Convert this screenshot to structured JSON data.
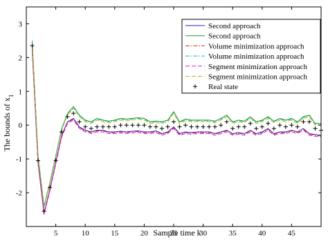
{
  "chart_data": {
    "type": "line",
    "title": "",
    "xlabel": "Sample time k",
    "ylabel": "The bounds of x",
    "ylabel_subscript": "1",
    "xlim": [
      0,
      50
    ],
    "ylim": [
      -3,
      3.5
    ],
    "xticks": [
      5,
      10,
      15,
      20,
      25,
      30,
      35,
      40,
      45
    ],
    "yticks": [
      -2,
      -1,
      0,
      1,
      2,
      3
    ],
    "grid": false,
    "legend_position": "top-right",
    "x": [
      1,
      2,
      3,
      4,
      5,
      6,
      7,
      8,
      9,
      10,
      11,
      12,
      13,
      14,
      15,
      16,
      17,
      18,
      19,
      20,
      21,
      22,
      23,
      24,
      25,
      26,
      27,
      28,
      29,
      30,
      31,
      32,
      33,
      34,
      35,
      36,
      37,
      38,
      39,
      40,
      41,
      42,
      43,
      44,
      45,
      46,
      47,
      48,
      49,
      50
    ],
    "series": [
      {
        "name": "Second approach",
        "color": "#2323d8",
        "dash": "solid",
        "values": [
          2.3,
          -1.1,
          -2.6,
          -1.9,
          -1.1,
          -0.3,
          0.1,
          0.2,
          -0.05,
          -0.15,
          -0.2,
          -0.15,
          -0.15,
          -0.2,
          -0.2,
          -0.18,
          -0.2,
          -0.18,
          -0.17,
          -0.2,
          -0.2,
          -0.17,
          -0.25,
          -0.2,
          -0.05,
          -0.25,
          -0.2,
          -0.22,
          -0.2,
          -0.2,
          -0.2,
          -0.25,
          -0.2,
          -0.15,
          -0.25,
          -0.22,
          -0.25,
          -0.15,
          -0.25,
          -0.2,
          -0.1,
          -0.25,
          -0.2,
          -0.2,
          -0.15,
          -0.2,
          -0.1,
          -0.25,
          -0.28,
          -0.3
        ]
      },
      {
        "name": "Second approach",
        "color": "#1f9e1f",
        "dash": "solid",
        "values": [
          2.5,
          -0.9,
          -2.4,
          -1.7,
          -0.9,
          -0.1,
          0.35,
          0.55,
          0.3,
          0.15,
          0.1,
          0.2,
          0.15,
          0.12,
          0.15,
          0.2,
          0.18,
          0.2,
          0.22,
          0.2,
          0.1,
          0.12,
          0.1,
          0.15,
          0.4,
          0.1,
          0.18,
          0.15,
          0.15,
          0.15,
          0.15,
          0.12,
          0.2,
          0.3,
          0.1,
          0.15,
          0.12,
          0.25,
          0.1,
          0.15,
          0.25,
          0.12,
          0.2,
          0.15,
          0.2,
          0.1,
          0.25,
          0.3,
          0.05,
          0.05
        ]
      },
      {
        "name": "Volume minimization approach",
        "color": "#e02020",
        "dash": "dashdot",
        "values": [
          2.25,
          -1.12,
          -2.62,
          -1.92,
          -1.12,
          -0.32,
          0.08,
          0.18,
          -0.07,
          -0.17,
          -0.22,
          -0.17,
          -0.17,
          -0.22,
          -0.22,
          -0.2,
          -0.22,
          -0.2,
          -0.19,
          -0.22,
          -0.22,
          -0.19,
          -0.27,
          -0.22,
          -0.07,
          -0.27,
          -0.22,
          -0.24,
          -0.22,
          -0.22,
          -0.22,
          -0.27,
          -0.22,
          -0.17,
          -0.27,
          -0.24,
          -0.27,
          -0.17,
          -0.27,
          -0.22,
          -0.12,
          -0.27,
          -0.22,
          -0.22,
          -0.17,
          -0.22,
          -0.12,
          -0.27,
          -0.3,
          -0.32
        ]
      },
      {
        "name": "Volume minimization approach",
        "color": "#1fb8c8",
        "dash": "dashdot",
        "values": [
          2.45,
          -0.92,
          -2.42,
          -1.72,
          -0.92,
          -0.12,
          0.33,
          0.53,
          0.28,
          0.13,
          0.08,
          0.18,
          0.13,
          0.1,
          0.13,
          0.18,
          0.16,
          0.18,
          0.2,
          0.18,
          0.08,
          0.1,
          0.08,
          0.13,
          0.38,
          0.08,
          0.16,
          0.13,
          0.13,
          0.13,
          0.13,
          0.1,
          0.18,
          0.28,
          0.08,
          0.13,
          0.1,
          0.23,
          0.08,
          0.13,
          0.23,
          0.1,
          0.18,
          0.13,
          0.18,
          0.08,
          0.23,
          0.28,
          0.03,
          0.03
        ]
      },
      {
        "name": "Segment minimization approach",
        "color": "#d020d0",
        "dash": "dashed",
        "values": [
          2.2,
          -1.15,
          -2.65,
          -1.95,
          -1.15,
          -0.35,
          0.05,
          0.15,
          -0.1,
          -0.2,
          -0.25,
          -0.2,
          -0.2,
          -0.25,
          -0.25,
          -0.23,
          -0.25,
          -0.23,
          -0.22,
          -0.25,
          -0.25,
          -0.22,
          -0.3,
          -0.25,
          -0.1,
          -0.3,
          -0.25,
          -0.27,
          -0.25,
          -0.25,
          -0.25,
          -0.3,
          -0.25,
          -0.2,
          -0.3,
          -0.27,
          -0.3,
          -0.2,
          -0.3,
          -0.25,
          -0.15,
          -0.3,
          -0.25,
          -0.25,
          -0.2,
          -0.25,
          -0.15,
          -0.3,
          -0.33,
          -0.35
        ]
      },
      {
        "name": "Segment minimization approach",
        "color": "#c8b400",
        "dash": "dashed",
        "values": [
          2.4,
          -0.95,
          -2.45,
          -1.75,
          -0.95,
          -0.15,
          0.3,
          0.5,
          0.25,
          0.1,
          0.05,
          0.15,
          0.1,
          0.07,
          0.1,
          0.15,
          0.13,
          0.15,
          0.17,
          0.15,
          0.05,
          0.07,
          0.05,
          0.1,
          0.35,
          0.05,
          0.13,
          0.1,
          0.1,
          0.1,
          0.1,
          0.07,
          0.15,
          0.25,
          0.05,
          0.1,
          0.07,
          0.2,
          0.05,
          0.1,
          0.2,
          0.07,
          0.15,
          0.1,
          0.15,
          0.05,
          0.2,
          0.25,
          0.0,
          0.0
        ]
      },
      {
        "name": "Real state",
        "color": "#000000",
        "marker": "+",
        "values": [
          2.35,
          -1.05,
          -2.55,
          -1.85,
          -1.05,
          -0.2,
          0.25,
          0.35,
          0.1,
          -0.05,
          -0.1,
          -0.05,
          -0.05,
          -0.05,
          -0.05,
          0.0,
          0.0,
          0.0,
          0.0,
          0.0,
          -0.05,
          -0.05,
          -0.1,
          -0.05,
          0.1,
          -0.05,
          0.0,
          -0.05,
          -0.05,
          -0.05,
          -0.05,
          -0.05,
          0.0,
          0.1,
          -0.1,
          -0.05,
          -0.05,
          0.05,
          -0.1,
          -0.05,
          0.05,
          -0.1,
          0.0,
          -0.05,
          0.0,
          -0.05,
          0.1,
          0.1,
          -0.1,
          -0.15
        ]
      }
    ]
  }
}
